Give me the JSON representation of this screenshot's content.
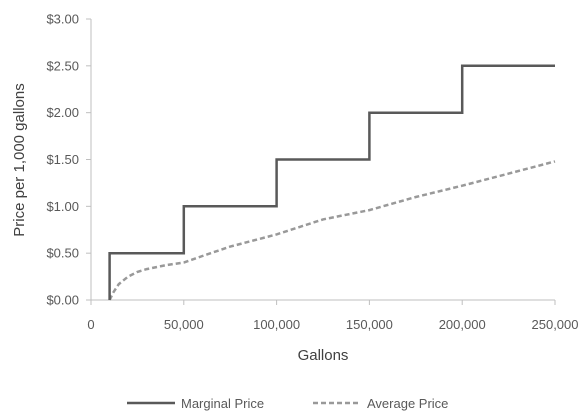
{
  "chart_data": {
    "type": "line",
    "title": "",
    "xlabel": "Gallons",
    "ylabel": "Price per 1,000 gallons",
    "xlim": [
      0,
      250000
    ],
    "ylim": [
      0,
      3.0
    ],
    "x_ticks": [
      0,
      50000,
      100000,
      150000,
      200000,
      250000
    ],
    "x_tick_labels": [
      "0",
      "50,000",
      "100,000",
      "150,000",
      "200,000",
      "250,000"
    ],
    "y_ticks": [
      0,
      0.5,
      1.0,
      1.5,
      2.0,
      2.5,
      3.0
    ],
    "y_tick_labels": [
      "$0.00",
      "$0.50",
      "$1.00",
      "$1.50",
      "$2.00",
      "$2.50",
      "$3.00"
    ],
    "grid": false,
    "legend_position": "bottom",
    "series": [
      {
        "name": "Marginal Price",
        "style": "solid",
        "color": "#595959",
        "x": [
          10000,
          10000,
          50000,
          50000,
          100000,
          100000,
          150000,
          150000,
          200000,
          200000,
          250000
        ],
        "y": [
          0,
          0.5,
          0.5,
          1.0,
          1.0,
          1.5,
          1.5,
          2.0,
          2.0,
          2.5,
          2.5
        ]
      },
      {
        "name": "Average Price",
        "style": "dashed",
        "color": "#999999",
        "x": [
          10000,
          12000,
          15000,
          20000,
          25000,
          30000,
          40000,
          50000,
          60000,
          75000,
          100000,
          125000,
          150000,
          175000,
          200000,
          225000,
          250000
        ],
        "y": [
          0,
          0.08,
          0.17,
          0.25,
          0.3,
          0.33,
          0.37,
          0.4,
          0.47,
          0.57,
          0.7,
          0.86,
          0.96,
          1.1,
          1.22,
          1.35,
          1.48
        ]
      }
    ]
  }
}
